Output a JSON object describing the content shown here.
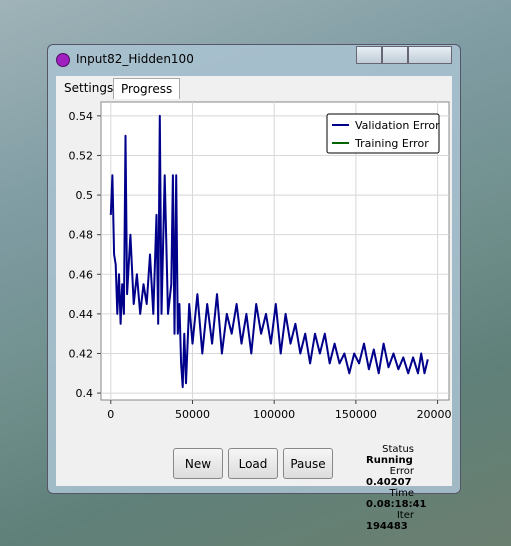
{
  "window": {
    "title": "Input82_Hidden100"
  },
  "tabs": [
    "Settings",
    "Progress"
  ],
  "chart_data": {
    "type": "line",
    "xlim": [
      -6000,
      207000
    ],
    "xticks": [
      0,
      50000,
      100000,
      150000,
      200000
    ],
    "ylim": [
      0.3965,
      0.547
    ],
    "yticks": [
      0.4,
      0.42,
      0.44,
      0.46,
      0.48,
      0.5,
      0.52,
      0.54
    ],
    "grid": true,
    "legend": "upper right",
    "series": [
      {
        "name": "Validation Error",
        "color": "#00008b",
        "x": [
          0,
          1000,
          2000,
          3000,
          4000,
          5000,
          6000,
          7000,
          8000,
          9000,
          10000,
          12000,
          14000,
          16000,
          18000,
          20000,
          22000,
          24000,
          26000,
          28000,
          29000,
          30000,
          31000,
          33000,
          35000,
          37000,
          38000,
          39000,
          40000,
          41000,
          42000,
          43000,
          44000,
          45000,
          46000,
          48000,
          50000,
          53000,
          56000,
          59000,
          62000,
          65000,
          68000,
          71000,
          74000,
          77000,
          80000,
          83000,
          86000,
          89000,
          92000,
          95000,
          98000,
          101000,
          104000,
          107000,
          110000,
          113000,
          116000,
          119000,
          122000,
          125000,
          128000,
          131000,
          134000,
          137000,
          140000,
          143000,
          146000,
          149000,
          152000,
          155000,
          158000,
          161000,
          164000,
          167000,
          170000,
          173000,
          176000,
          179000,
          182000,
          185000,
          188000,
          190000,
          192000,
          194000
        ],
        "values": [
          0.49,
          0.51,
          0.47,
          0.465,
          0.44,
          0.46,
          0.435,
          0.455,
          0.44,
          0.53,
          0.45,
          0.48,
          0.445,
          0.46,
          0.44,
          0.455,
          0.445,
          0.47,
          0.44,
          0.49,
          0.435,
          0.54,
          0.44,
          0.51,
          0.44,
          0.455,
          0.51,
          0.43,
          0.51,
          0.43,
          0.445,
          0.415,
          0.403,
          0.43,
          0.405,
          0.445,
          0.425,
          0.45,
          0.42,
          0.445,
          0.425,
          0.45,
          0.42,
          0.44,
          0.43,
          0.445,
          0.425,
          0.44,
          0.42,
          0.445,
          0.43,
          0.44,
          0.425,
          0.445,
          0.42,
          0.44,
          0.425,
          0.435,
          0.42,
          0.43,
          0.415,
          0.43,
          0.42,
          0.43,
          0.415,
          0.425,
          0.415,
          0.42,
          0.41,
          0.42,
          0.415,
          0.425,
          0.412,
          0.422,
          0.41,
          0.425,
          0.413,
          0.42,
          0.412,
          0.418,
          0.41,
          0.418,
          0.41,
          0.42,
          0.41,
          0.417
        ]
      },
      {
        "name": "Training Error",
        "color": "#006400",
        "x": [],
        "values": []
      }
    ]
  },
  "buttons": [
    "New",
    "Load",
    "Pause"
  ],
  "status": {
    "labels": [
      "Status",
      "Error",
      "Time",
      "Iter"
    ],
    "values": [
      "Running",
      "0.40207",
      "0.08:18:41",
      "194483"
    ]
  }
}
